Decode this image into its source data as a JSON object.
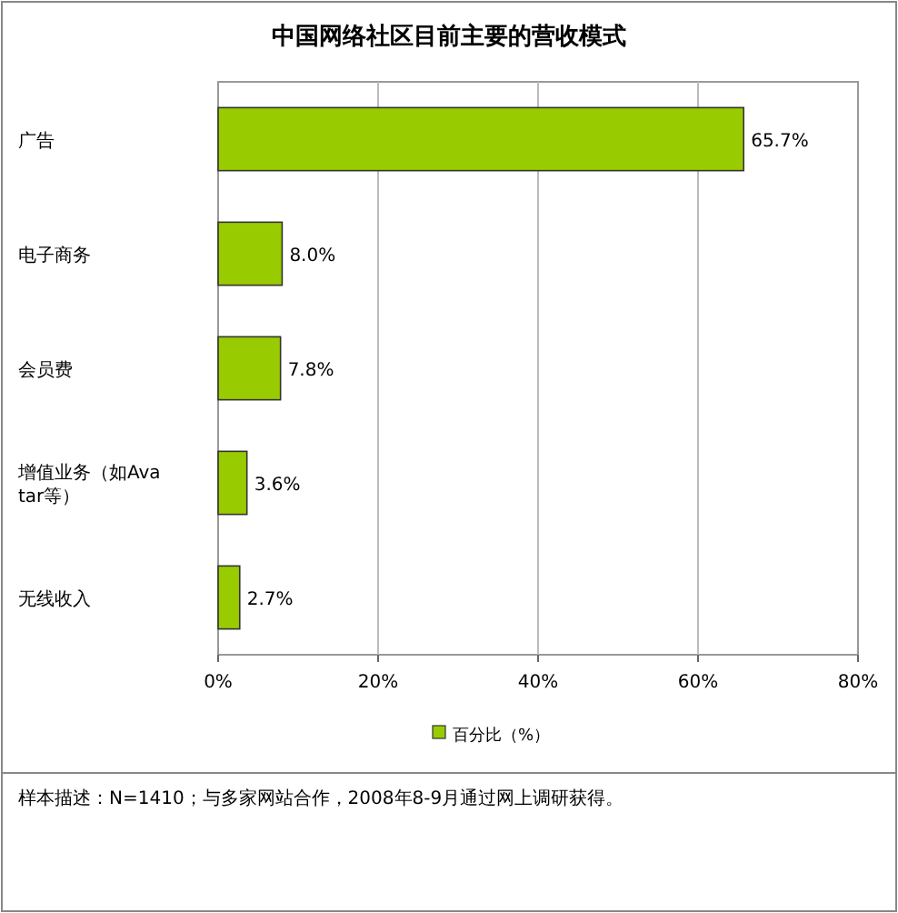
{
  "chart_data": {
    "type": "bar",
    "orientation": "horizontal",
    "title": "中国网络社区目前主要的营收模式",
    "categories": [
      "广告",
      "电子商务",
      "会员费",
      "增值业务（如Avatar等）",
      "无线收入"
    ],
    "series": [
      {
        "name": "百分比（%）",
        "color": "#99cc00",
        "values": [
          65.7,
          8.0,
          7.8,
          3.6,
          2.7
        ],
        "value_labels": [
          "65.7%",
          "8.0%",
          "7.8%",
          "3.6%",
          "2.7%"
        ]
      }
    ],
    "xlim": [
      0,
      80
    ],
    "xticks": [
      {
        "value": 0,
        "label": "0%"
      },
      {
        "value": 20,
        "label": "20%"
      },
      {
        "value": 40,
        "label": "40%"
      },
      {
        "value": 60,
        "label": "60%"
      },
      {
        "value": 80,
        "label": "80%"
      }
    ],
    "grid": "x",
    "legend": "bottom",
    "annotations": [
      "样本描述：N=1410；与多家网站合作，2008年8-9月通过网上调研获得。"
    ]
  }
}
